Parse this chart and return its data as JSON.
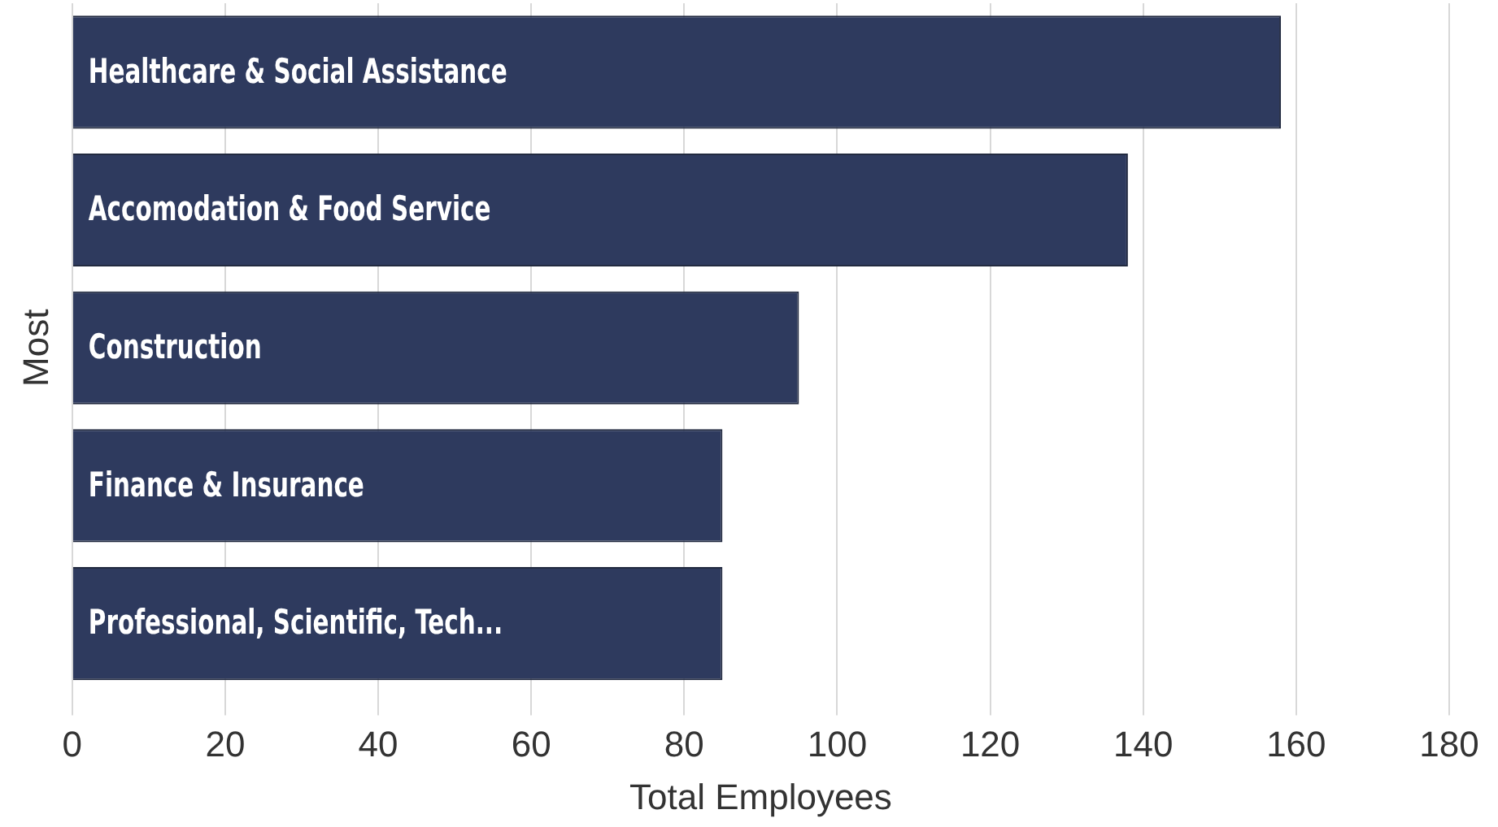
{
  "chart_data": {
    "type": "bar",
    "orientation": "horizontal",
    "categories": [
      "Healthcare & Social Assistance",
      "Accomodation & Food Service",
      "Construction",
      "Finance & Insurance",
      "Professional, Scientific, Tech..."
    ],
    "values": [
      158,
      138,
      95,
      85,
      85
    ],
    "color": "#2e3a5e",
    "xlabel": "Total Employees",
    "ylabel": "Most",
    "xlim": [
      0,
      180
    ],
    "xticks": [
      0,
      20,
      40,
      60,
      80,
      100,
      120,
      140,
      160,
      180
    ],
    "grid": "x",
    "legend": false
  }
}
